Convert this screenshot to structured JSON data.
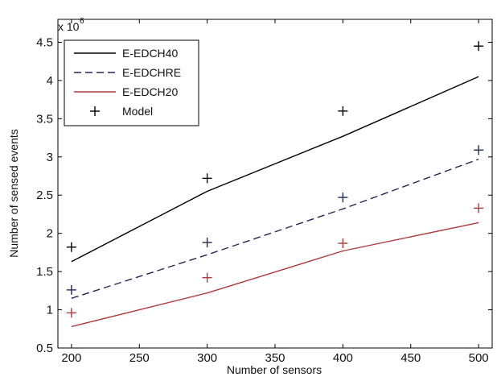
{
  "chart_data": {
    "type": "line",
    "xlabel": "Number of sensors",
    "ylabel": "Number of sensed events",
    "y_multiplier_base": "x 10",
    "y_multiplier_exp": "6",
    "xlim": [
      190,
      510
    ],
    "ylim": [
      0.5,
      4.8
    ],
    "x_ticks": [
      200,
      250,
      300,
      350,
      400,
      450,
      500
    ],
    "y_ticks": [
      0.5,
      1,
      1.5,
      2,
      2.5,
      3,
      3.5,
      4,
      4.5
    ],
    "y_tick_labels": [
      "0.5",
      "1",
      "1.5",
      "2",
      "2.5",
      "3",
      "3.5",
      "4",
      "4.5"
    ],
    "x": [
      200,
      300,
      400,
      500
    ],
    "series": [
      {
        "name": "E-EDCH40",
        "kind": "line",
        "style": "solid",
        "color": "#000000",
        "values": [
          1.63,
          2.55,
          3.27,
          4.05
        ]
      },
      {
        "name": "E-EDCHRE",
        "kind": "line",
        "style": "dashed",
        "color": "#1f2a55",
        "values": [
          1.15,
          1.72,
          2.32,
          2.97
        ]
      },
      {
        "name": "E-EDCH20",
        "kind": "line",
        "style": "solid",
        "color": "#b03a3a",
        "values": [
          0.78,
          1.22,
          1.77,
          2.14
        ]
      },
      {
        "name": "Model",
        "kind": "marker",
        "marker": "+",
        "points": [
          {
            "x": 200,
            "y": 1.82,
            "color": "#000000"
          },
          {
            "x": 300,
            "y": 2.72,
            "color": "#000000"
          },
          {
            "x": 400,
            "y": 3.6,
            "color": "#000000"
          },
          {
            "x": 500,
            "y": 4.45,
            "color": "#000000"
          },
          {
            "x": 200,
            "y": 1.26,
            "color": "#1f2a55"
          },
          {
            "x": 300,
            "y": 1.88,
            "color": "#1f2a55"
          },
          {
            "x": 400,
            "y": 2.47,
            "color": "#1f2a55"
          },
          {
            "x": 500,
            "y": 3.09,
            "color": "#1f2a55"
          },
          {
            "x": 200,
            "y": 0.96,
            "color": "#b03a3a"
          },
          {
            "x": 300,
            "y": 1.42,
            "color": "#b03a3a"
          },
          {
            "x": 400,
            "y": 1.87,
            "color": "#b03a3a"
          },
          {
            "x": 500,
            "y": 2.33,
            "color": "#b03a3a"
          }
        ]
      }
    ],
    "grid": false,
    "legend_position": "top-left"
  }
}
